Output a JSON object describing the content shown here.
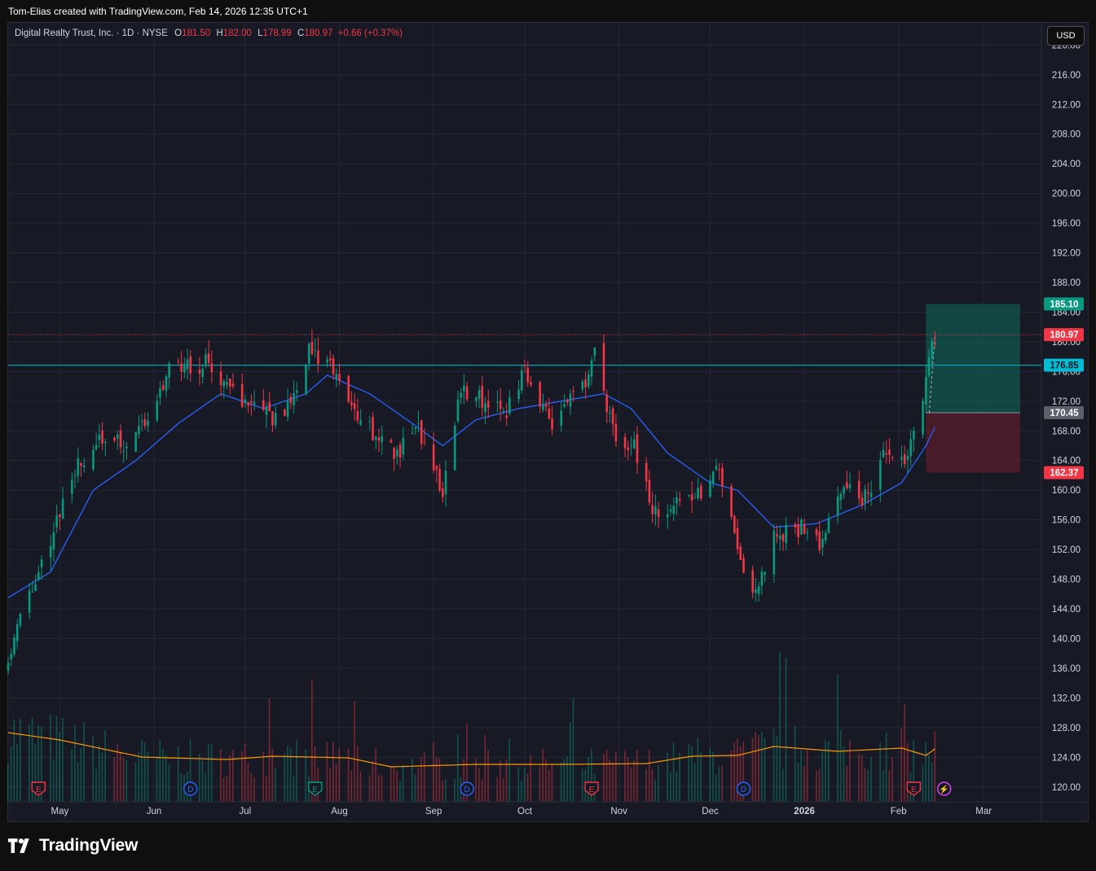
{
  "caption": "Tom-Elias created with TradingView.com, Feb 14, 2026 12:35 UTC+1",
  "legend": {
    "symbol": "Digital Realty Trust, Inc. · 1D · NYSE",
    "o_label": "O",
    "o_value": "181.50",
    "h_label": "H",
    "h_value": "182.00",
    "l_label": "L",
    "l_value": "178.99",
    "c_label": "C",
    "c_value": "180.97",
    "change": "+0.66 (+0.37%)"
  },
  "currency_button": "USD",
  "brand": "TradingView",
  "colors": {
    "background": "#171a25",
    "up": "#089981",
    "down": "#f23645",
    "ma": "#2962ff",
    "volume_ma": "#ff9800",
    "hline": "#00bcd4",
    "profit_zone": "#0f6b5c",
    "loss_zone": "#5e1d2b"
  },
  "chart_data": {
    "type": "candlestick",
    "timeframe": "1D",
    "ylim": [
      118,
      223
    ],
    "y_ticks": [
      "220.00",
      "216.00",
      "212.00",
      "208.00",
      "204.00",
      "200.00",
      "196.00",
      "192.00",
      "188.00",
      "184.00",
      "180.00",
      "176.00",
      "172.00",
      "168.00",
      "164.00",
      "160.00",
      "156.00",
      "152.00",
      "148.00",
      "144.00",
      "140.00",
      "136.00",
      "132.00",
      "128.00",
      "124.00",
      "120.00"
    ],
    "x_ticks": [
      "May",
      "Jun",
      "Jul",
      "Aug",
      "Sep",
      "Oct",
      "Nov",
      "Dec",
      "2026",
      "Feb",
      "Mar"
    ],
    "close_path": [
      {
        "date": "2025-04-14",
        "close": 138
      },
      {
        "date": "2025-04-22",
        "close": 147
      },
      {
        "date": "2025-04-30",
        "close": 156
      },
      {
        "date": "2025-05-08",
        "close": 164
      },
      {
        "date": "2025-05-16",
        "close": 167
      },
      {
        "date": "2025-05-22",
        "close": 166
      },
      {
        "date": "2025-05-30",
        "close": 170
      },
      {
        "date": "2025-06-06",
        "close": 176
      },
      {
        "date": "2025-06-12",
        "close": 177
      },
      {
        "date": "2025-06-20",
        "close": 177
      },
      {
        "date": "2025-06-27",
        "close": 173
      },
      {
        "date": "2025-07-03",
        "close": 171
      },
      {
        "date": "2025-07-10",
        "close": 170
      },
      {
        "date": "2025-07-15",
        "close": 171
      },
      {
        "date": "2025-07-22",
        "close": 179
      },
      {
        "date": "2025-07-28",
        "close": 177
      },
      {
        "date": "2025-08-04",
        "close": 172
      },
      {
        "date": "2025-08-12",
        "close": 168
      },
      {
        "date": "2025-08-20",
        "close": 165
      },
      {
        "date": "2025-08-26",
        "close": 169
      },
      {
        "date": "2025-09-04",
        "close": 160
      },
      {
        "date": "2025-09-10",
        "close": 174
      },
      {
        "date": "2025-09-18",
        "close": 172
      },
      {
        "date": "2025-09-25",
        "close": 171
      },
      {
        "date": "2025-10-01",
        "close": 176
      },
      {
        "date": "2025-10-10",
        "close": 169
      },
      {
        "date": "2025-10-20",
        "close": 174
      },
      {
        "date": "2025-10-24",
        "close": 178
      },
      {
        "date": "2025-10-30",
        "close": 168
      },
      {
        "date": "2025-11-06",
        "close": 166
      },
      {
        "date": "2025-11-12",
        "close": 157
      },
      {
        "date": "2025-11-20",
        "close": 158
      },
      {
        "date": "2025-11-28",
        "close": 160
      },
      {
        "date": "2025-12-04",
        "close": 163
      },
      {
        "date": "2025-12-12",
        "close": 148
      },
      {
        "date": "2025-12-17",
        "close": 147
      },
      {
        "date": "2025-12-22",
        "close": 154
      },
      {
        "date": "2025-12-31",
        "close": 155
      },
      {
        "date": "2026-01-06",
        "close": 153
      },
      {
        "date": "2026-01-14",
        "close": 160
      },
      {
        "date": "2026-01-21",
        "close": 159
      },
      {
        "date": "2026-01-28",
        "close": 165
      },
      {
        "date": "2026-02-04",
        "close": 164
      },
      {
        "date": "2026-02-09",
        "close": 172
      },
      {
        "date": "2026-02-12",
        "close": 181
      },
      {
        "date": "2026-02-13",
        "close": 180.97
      }
    ],
    "moving_average": [
      {
        "date": "2025-04-14",
        "value": 145.5
      },
      {
        "date": "2025-04-28",
        "value": 149
      },
      {
        "date": "2025-05-12",
        "value": 160
      },
      {
        "date": "2025-05-26",
        "value": 164
      },
      {
        "date": "2025-06-09",
        "value": 169
      },
      {
        "date": "2025-06-23",
        "value": 173
      },
      {
        "date": "2025-07-07",
        "value": 171
      },
      {
        "date": "2025-07-21",
        "value": 173
      },
      {
        "date": "2025-07-28",
        "value": 175.5
      },
      {
        "date": "2025-08-11",
        "value": 173
      },
      {
        "date": "2025-08-25",
        "value": 169
      },
      {
        "date": "2025-09-04",
        "value": 166
      },
      {
        "date": "2025-09-15",
        "value": 169.5
      },
      {
        "date": "2025-09-29",
        "value": 171
      },
      {
        "date": "2025-10-13",
        "value": 172
      },
      {
        "date": "2025-10-27",
        "value": 173
      },
      {
        "date": "2025-11-05",
        "value": 171
      },
      {
        "date": "2025-11-17",
        "value": 165
      },
      {
        "date": "2025-12-01",
        "value": 161
      },
      {
        "date": "2025-12-10",
        "value": 160
      },
      {
        "date": "2025-12-22",
        "value": 155
      },
      {
        "date": "2026-01-05",
        "value": 155.5
      },
      {
        "date": "2026-01-20",
        "value": 158
      },
      {
        "date": "2026-02-02",
        "value": 161
      },
      {
        "date": "2026-02-10",
        "value": 166
      },
      {
        "date": "2026-02-13",
        "value": 168.5
      }
    ],
    "volume_ma_path": [
      {
        "date": "2025-04-14",
        "level": 0.85
      },
      {
        "date": "2025-05-01",
        "level": 0.76
      },
      {
        "date": "2025-05-28",
        "level": 0.55
      },
      {
        "date": "2025-06-25",
        "level": 0.52
      },
      {
        "date": "2025-07-10",
        "level": 0.56
      },
      {
        "date": "2025-08-04",
        "level": 0.54
      },
      {
        "date": "2025-08-18",
        "level": 0.43
      },
      {
        "date": "2025-09-15",
        "level": 0.46
      },
      {
        "date": "2025-10-13",
        "level": 0.46
      },
      {
        "date": "2025-11-10",
        "level": 0.47
      },
      {
        "date": "2025-11-25",
        "level": 0.56
      },
      {
        "date": "2025-12-10",
        "level": 0.57
      },
      {
        "date": "2025-12-22",
        "level": 0.68
      },
      {
        "date": "2026-01-12",
        "level": 0.62
      },
      {
        "date": "2026-02-02",
        "level": 0.66
      },
      {
        "date": "2026-02-10",
        "level": 0.57
      },
      {
        "date": "2026-02-13",
        "level": 0.65
      }
    ],
    "horizontal_lines": [
      {
        "value": 176.85,
        "label": "176.85",
        "color": "#00bcd4",
        "style": "solid"
      },
      {
        "value": 180.97,
        "label": "180.97",
        "color": "#f23645",
        "style": "dotted"
      }
    ],
    "position": {
      "start_date": "2026-02-10",
      "end_date": "2026-03-13",
      "entry": 170.45,
      "target": 185.1,
      "stop": 162.37,
      "entry_label": "170.45",
      "target_label": "185.10",
      "stop_label": "162.37"
    },
    "events": [
      {
        "date": "2025-04-24",
        "icon": "E",
        "kind": "earnings",
        "color": "#f23645"
      },
      {
        "date": "2025-06-13",
        "icon": "D",
        "kind": "dividend",
        "color": "#2962ff"
      },
      {
        "date": "2025-07-24",
        "icon": "E",
        "kind": "earnings",
        "color": "#089981"
      },
      {
        "date": "2025-09-12",
        "icon": "D",
        "kind": "dividend",
        "color": "#2962ff"
      },
      {
        "date": "2025-10-23",
        "icon": "E",
        "kind": "earnings",
        "color": "#f23645"
      },
      {
        "date": "2025-12-12",
        "icon": "D",
        "kind": "dividend",
        "color": "#2962ff"
      },
      {
        "date": "2026-02-06",
        "icon": "E",
        "kind": "earnings",
        "color": "#f23645"
      },
      {
        "date": "2026-02-16",
        "icon": "⚡",
        "kind": "split",
        "color": "#e040fb"
      }
    ]
  }
}
